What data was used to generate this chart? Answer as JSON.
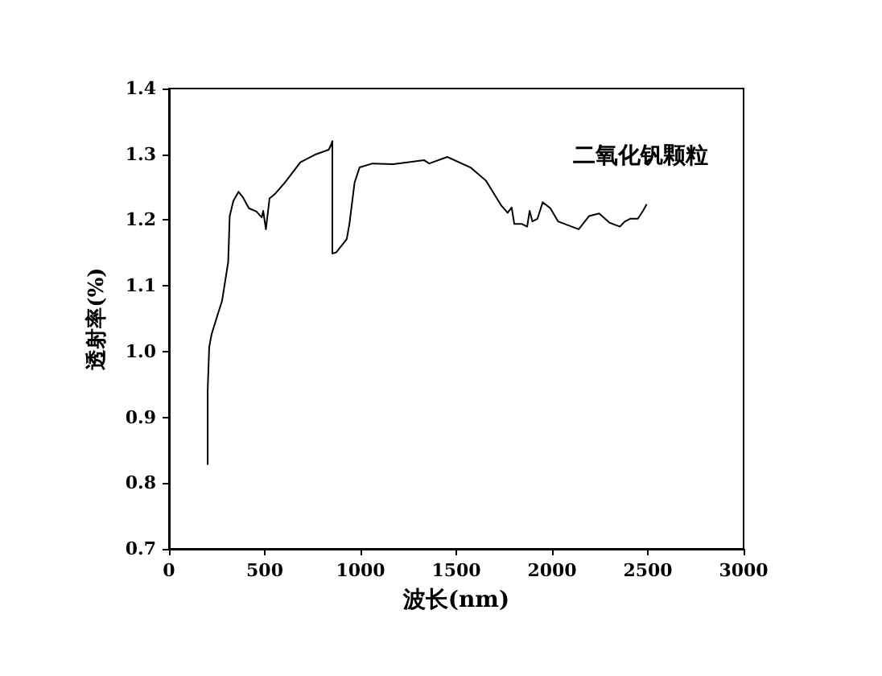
{
  "chart_data": {
    "type": "line",
    "xlabel": "波长(nm)",
    "ylabel": "透射率(%)",
    "annotations": [
      "二氧化钒颗粒"
    ],
    "xlim": [
      0,
      3000
    ],
    "xticks": [
      0,
      500,
      1000,
      1500,
      2000,
      2500,
      3000
    ],
    "ylim": [
      0.7,
      1.4
    ],
    "yticks": [
      {
        "value": 0.7,
        "label": "0.7"
      },
      {
        "value": 0.8,
        "label": "0.8"
      },
      {
        "value": 0.9,
        "label": "0.9"
      },
      {
        "value": 1.0,
        "label": "1.0"
      },
      {
        "value": 1.1,
        "label": "1.1"
      },
      {
        "value": 1.2,
        "label": "1.2"
      },
      {
        "value": 1.3,
        "label": "1.3"
      },
      {
        "value": 1.4,
        "label": "1.4"
      }
    ],
    "marker": "none",
    "line_style": "solid",
    "series": [
      {
        "color": "#000000",
        "x": [
          202,
          202,
          210,
          223,
          256,
          277,
          309,
          317,
          336,
          363,
          385,
          417,
          457,
          484,
          492,
          506,
          525,
          551,
          605,
          686,
          767,
          834,
          847,
          853,
          853,
          874,
          928,
          942,
          969,
          995,
          1063,
          1170,
          1332,
          1359,
          1453,
          1574,
          1655,
          1695,
          1735,
          1768,
          1789,
          1803,
          1843,
          1870,
          1883,
          1897,
          1924,
          1951,
          1991,
          2031,
          2139,
          2193,
          2246,
          2300,
          2354,
          2381,
          2408,
          2448,
          2475,
          2494
        ],
        "values": [
          0.828,
          0.941,
          1.007,
          1.027,
          1.058,
          1.077,
          1.136,
          1.206,
          1.229,
          1.243,
          1.235,
          1.218,
          1.213,
          1.204,
          1.214,
          1.186,
          1.233,
          1.239,
          1.257,
          1.288,
          1.3,
          1.307,
          1.315,
          1.32,
          1.149,
          1.151,
          1.171,
          1.194,
          1.257,
          1.28,
          1.286,
          1.285,
          1.291,
          1.286,
          1.296,
          1.28,
          1.26,
          1.241,
          1.222,
          1.211,
          1.219,
          1.194,
          1.194,
          1.19,
          1.214,
          1.198,
          1.202,
          1.227,
          1.218,
          1.198,
          1.186,
          1.206,
          1.21,
          1.196,
          1.19,
          1.198,
          1.202,
          1.202,
          1.214,
          1.224
        ]
      }
    ]
  }
}
